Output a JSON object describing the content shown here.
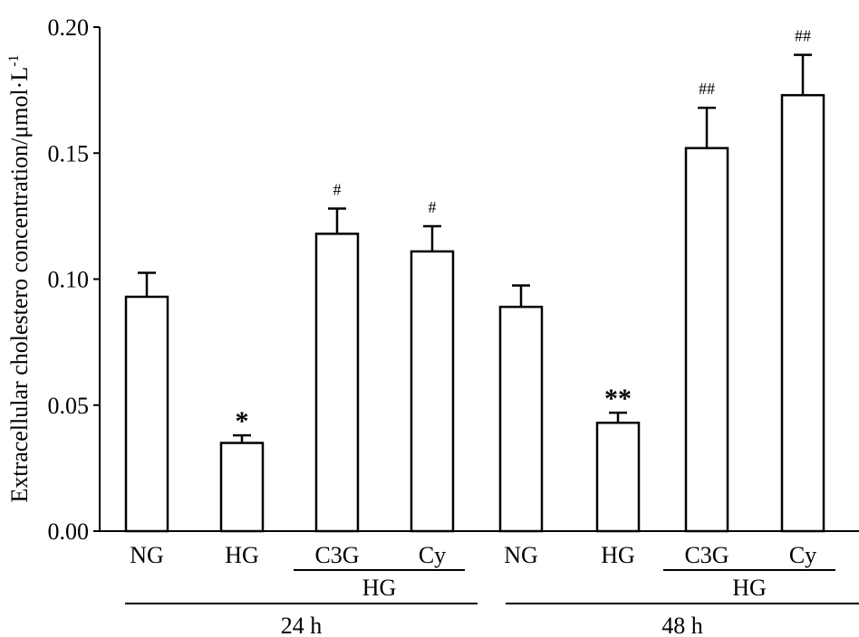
{
  "chart_data": {
    "type": "bar",
    "title": "",
    "ylabel": "Extracellular cholestero concentration/μmol·L",
    "ylabel_sup": "-1",
    "ylim": [
      0,
      0.2
    ],
    "yticks": [
      "0.00",
      "0.05",
      "0.10",
      "0.15",
      "0.20"
    ],
    "ytick_values": [
      0,
      0.05,
      0.1,
      0.15,
      0.2
    ],
    "categories": [
      "NG",
      "HG",
      "C3G",
      "Cy",
      "NG",
      "HG",
      "C3G",
      "Cy"
    ],
    "values": [
      0.093,
      0.035,
      0.118,
      0.111,
      0.089,
      0.043,
      0.152,
      0.173
    ],
    "errors": [
      0.0095,
      0.003,
      0.01,
      0.01,
      0.0085,
      0.004,
      0.016,
      0.016
    ],
    "significance": [
      "",
      "*",
      "#",
      "#",
      "",
      "**",
      "##",
      "##"
    ],
    "subgroups": [
      {
        "label": "HG",
        "from": 2,
        "to": 3
      },
      {
        "label": "HG",
        "from": 6,
        "to": 7
      }
    ],
    "groups": [
      {
        "label": "24 h",
        "from": 0,
        "to": 3
      },
      {
        "label": "48 h",
        "from": 4,
        "to": 7
      }
    ],
    "bar_fill": "#ffffff",
    "bar_stroke": "#000000"
  }
}
